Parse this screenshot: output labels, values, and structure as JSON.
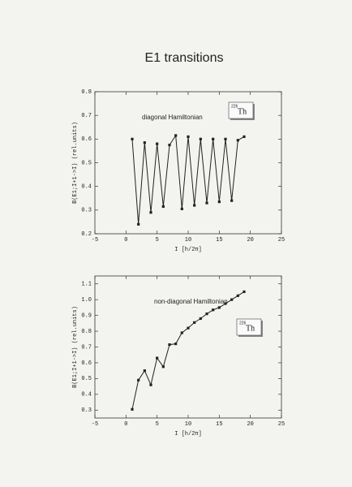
{
  "title": "E1 transitions",
  "chart_data": [
    {
      "type": "line",
      "annotation": "diagonal Hamiltonian",
      "isotope": {
        "mass": "226",
        "symbol": "Th"
      },
      "x_label": "I [h/2π]",
      "y_label": "B(E1;I+1->I) (rel.units)",
      "xlim": [
        -5,
        25
      ],
      "xticks": [
        -5,
        0,
        5,
        10,
        15,
        20,
        25
      ],
      "ylim": [
        0.2,
        0.8
      ],
      "yticks": [
        0.2,
        0.3,
        0.4,
        0.5,
        0.6,
        0.7,
        0.8
      ],
      "grid": false,
      "color": "#222222",
      "x": [
        1,
        2,
        3,
        4,
        5,
        6,
        7,
        8,
        9,
        10,
        11,
        12,
        13,
        14,
        15,
        16,
        17,
        18,
        19
      ],
      "values": [
        0.6,
        0.24,
        0.585,
        0.29,
        0.58,
        0.315,
        0.575,
        0.615,
        0.305,
        0.61,
        0.32,
        0.6,
        0.33,
        0.6,
        0.335,
        0.6,
        0.34,
        0.595,
        0.61
      ]
    },
    {
      "type": "line",
      "annotation": "non-diagonal Hamiltonian",
      "isotope": {
        "mass": "226",
        "symbol": "Th"
      },
      "x_label": "I [h/2π]",
      "y_label": "B(E1;I+1->I) (rel.units)",
      "xlim": [
        -5,
        25
      ],
      "xticks": [
        -5,
        0,
        5,
        10,
        15,
        20,
        25
      ],
      "ylim": [
        0.25,
        1.15
      ],
      "yticks": [
        0.3,
        0.4,
        0.5,
        0.6,
        0.7,
        0.8,
        0.9,
        {
          "value": 1,
          "label": "1.0"
        },
        1.1
      ],
      "grid": false,
      "color": "#222222",
      "x": [
        1,
        2,
        3,
        4,
        5,
        6,
        7,
        8,
        9,
        10,
        11,
        12,
        13,
        14,
        15,
        16,
        17,
        18,
        19
      ],
      "values": [
        0.305,
        0.49,
        0.55,
        0.46,
        0.63,
        0.575,
        0.715,
        0.72,
        0.79,
        0.82,
        0.855,
        0.88,
        0.91,
        0.935,
        0.95,
        0.975,
        1.0,
        1.025,
        1.05
      ]
    }
  ]
}
